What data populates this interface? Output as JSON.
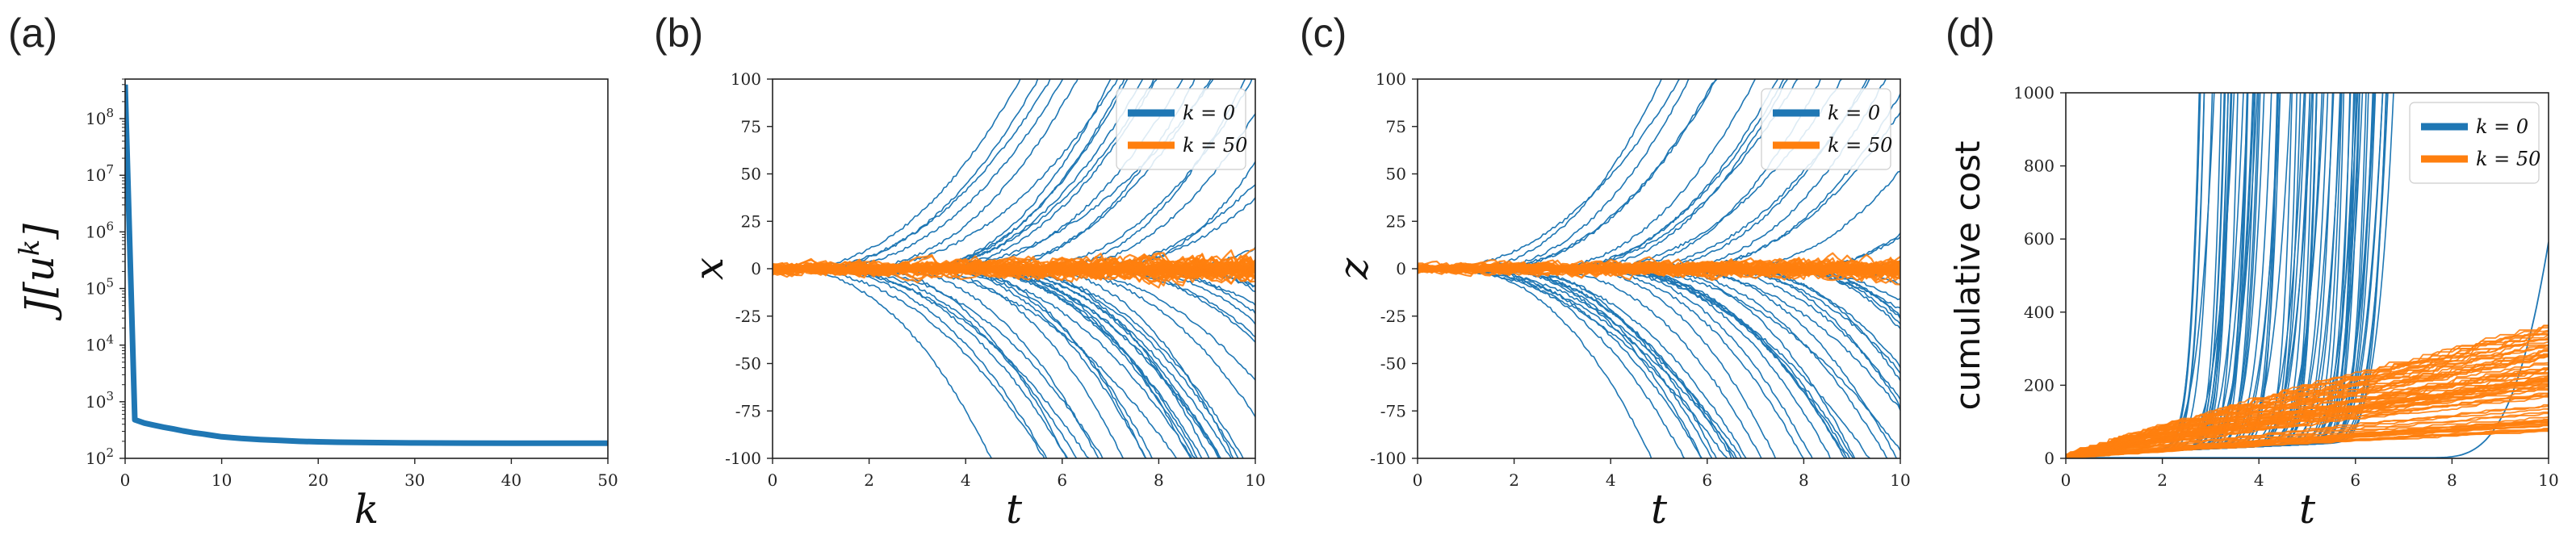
{
  "colors": {
    "blue": "#1f77b4",
    "orange": "#ff7f0e"
  },
  "chart_data": [
    {
      "id": "a",
      "panel": "(a)",
      "type": "line",
      "yscale": "log",
      "xlabel": "k",
      "ylabel": "J[u^k]",
      "xlim": [
        0,
        50
      ],
      "ylim": [
        100,
        500000000
      ],
      "xticks": [
        0,
        10,
        20,
        30,
        40,
        50
      ],
      "yticks": [
        100,
        1000,
        10000,
        100000,
        1000000,
        10000000,
        100000000
      ],
      "ytick_labels": [
        "10^2",
        "10^3",
        "10^4",
        "10^5",
        "10^6",
        "10^7",
        "10^8"
      ],
      "series": [
        {
          "name": "J",
          "color": "#1f77b4",
          "x": [
            0,
            1,
            2,
            3,
            4,
            5,
            6,
            7,
            8,
            9,
            10,
            12,
            14,
            16,
            18,
            20,
            22,
            25,
            30,
            35,
            40,
            45,
            50
          ],
          "values": [
            400000000,
            480,
            420,
            385,
            355,
            330,
            305,
            285,
            270,
            255,
            240,
            225,
            215,
            207,
            200,
            196,
            193,
            190,
            187,
            186,
            185,
            185,
            185
          ]
        }
      ]
    },
    {
      "id": "b",
      "panel": "(b)",
      "type": "line",
      "xlabel": "t",
      "ylabel": "x",
      "xlim": [
        0,
        10
      ],
      "ylim": [
        -100,
        100
      ],
      "xticks": [
        0,
        2,
        4,
        6,
        8,
        10
      ],
      "yticks": [
        -100,
        -75,
        -50,
        -25,
        0,
        25,
        50,
        75,
        100
      ],
      "legend": {
        "position": "top-right",
        "entries": [
          "k = 0",
          "k = 50"
        ]
      },
      "series": [
        {
          "name": "k = 0",
          "kind": "diverging",
          "n": 60,
          "diverge_start_range": [
            0.2,
            8.6
          ],
          "diverge_rate_range": [
            0.55,
            1.4
          ],
          "note": "trajectories fan out to +/-100 between t = 3 and t = 10"
        },
        {
          "name": "k = 50",
          "kind": "band",
          "n": 60,
          "amplitude_range": [
            0.6,
            9
          ]
        }
      ]
    },
    {
      "id": "c",
      "panel": "(c)",
      "type": "line",
      "xlabel": "t",
      "ylabel": "z",
      "xlim": [
        0,
        10
      ],
      "ylim": [
        -100,
        100
      ],
      "xticks": [
        0,
        2,
        4,
        6,
        8,
        10
      ],
      "yticks": [
        -100,
        -75,
        -50,
        -25,
        0,
        25,
        50,
        75,
        100
      ],
      "legend": {
        "position": "top-right",
        "entries": [
          "k = 0",
          "k = 50"
        ]
      },
      "series": [
        {
          "name": "k = 0",
          "kind": "diverging",
          "n": 60,
          "diverge_start_range": [
            0.2,
            8.6
          ],
          "diverge_rate_range": [
            0.55,
            1.4
          ],
          "note": "trajectories fan out to +/-100 between t = 3 and t = 10"
        },
        {
          "name": "k = 50",
          "kind": "band",
          "n": 60,
          "amplitude_range": [
            0.5,
            7
          ]
        }
      ]
    },
    {
      "id": "d",
      "panel": "(d)",
      "type": "line",
      "xlabel": "t",
      "ylabel": "cumulative cost",
      "xlim": [
        0,
        10
      ],
      "ylim": [
        0,
        1000
      ],
      "xticks": [
        0,
        2,
        4,
        6,
        8,
        10
      ],
      "yticks": [
        0,
        200,
        400,
        600,
        800,
        1000
      ],
      "legend": {
        "position": "top-right",
        "entries": [
          "k = 0",
          "k = 50"
        ]
      },
      "series": [
        {
          "name": "k = 0",
          "kind": "blowup",
          "n": 80,
          "blowup_time_range": [
            2.4,
            6.3
          ],
          "late_curve": {
            "reaches": 590,
            "at": 10
          }
        },
        {
          "name": "k = 50",
          "kind": "growing",
          "n": 80,
          "final_value_range": [
            60,
            360
          ]
        }
      ]
    }
  ]
}
